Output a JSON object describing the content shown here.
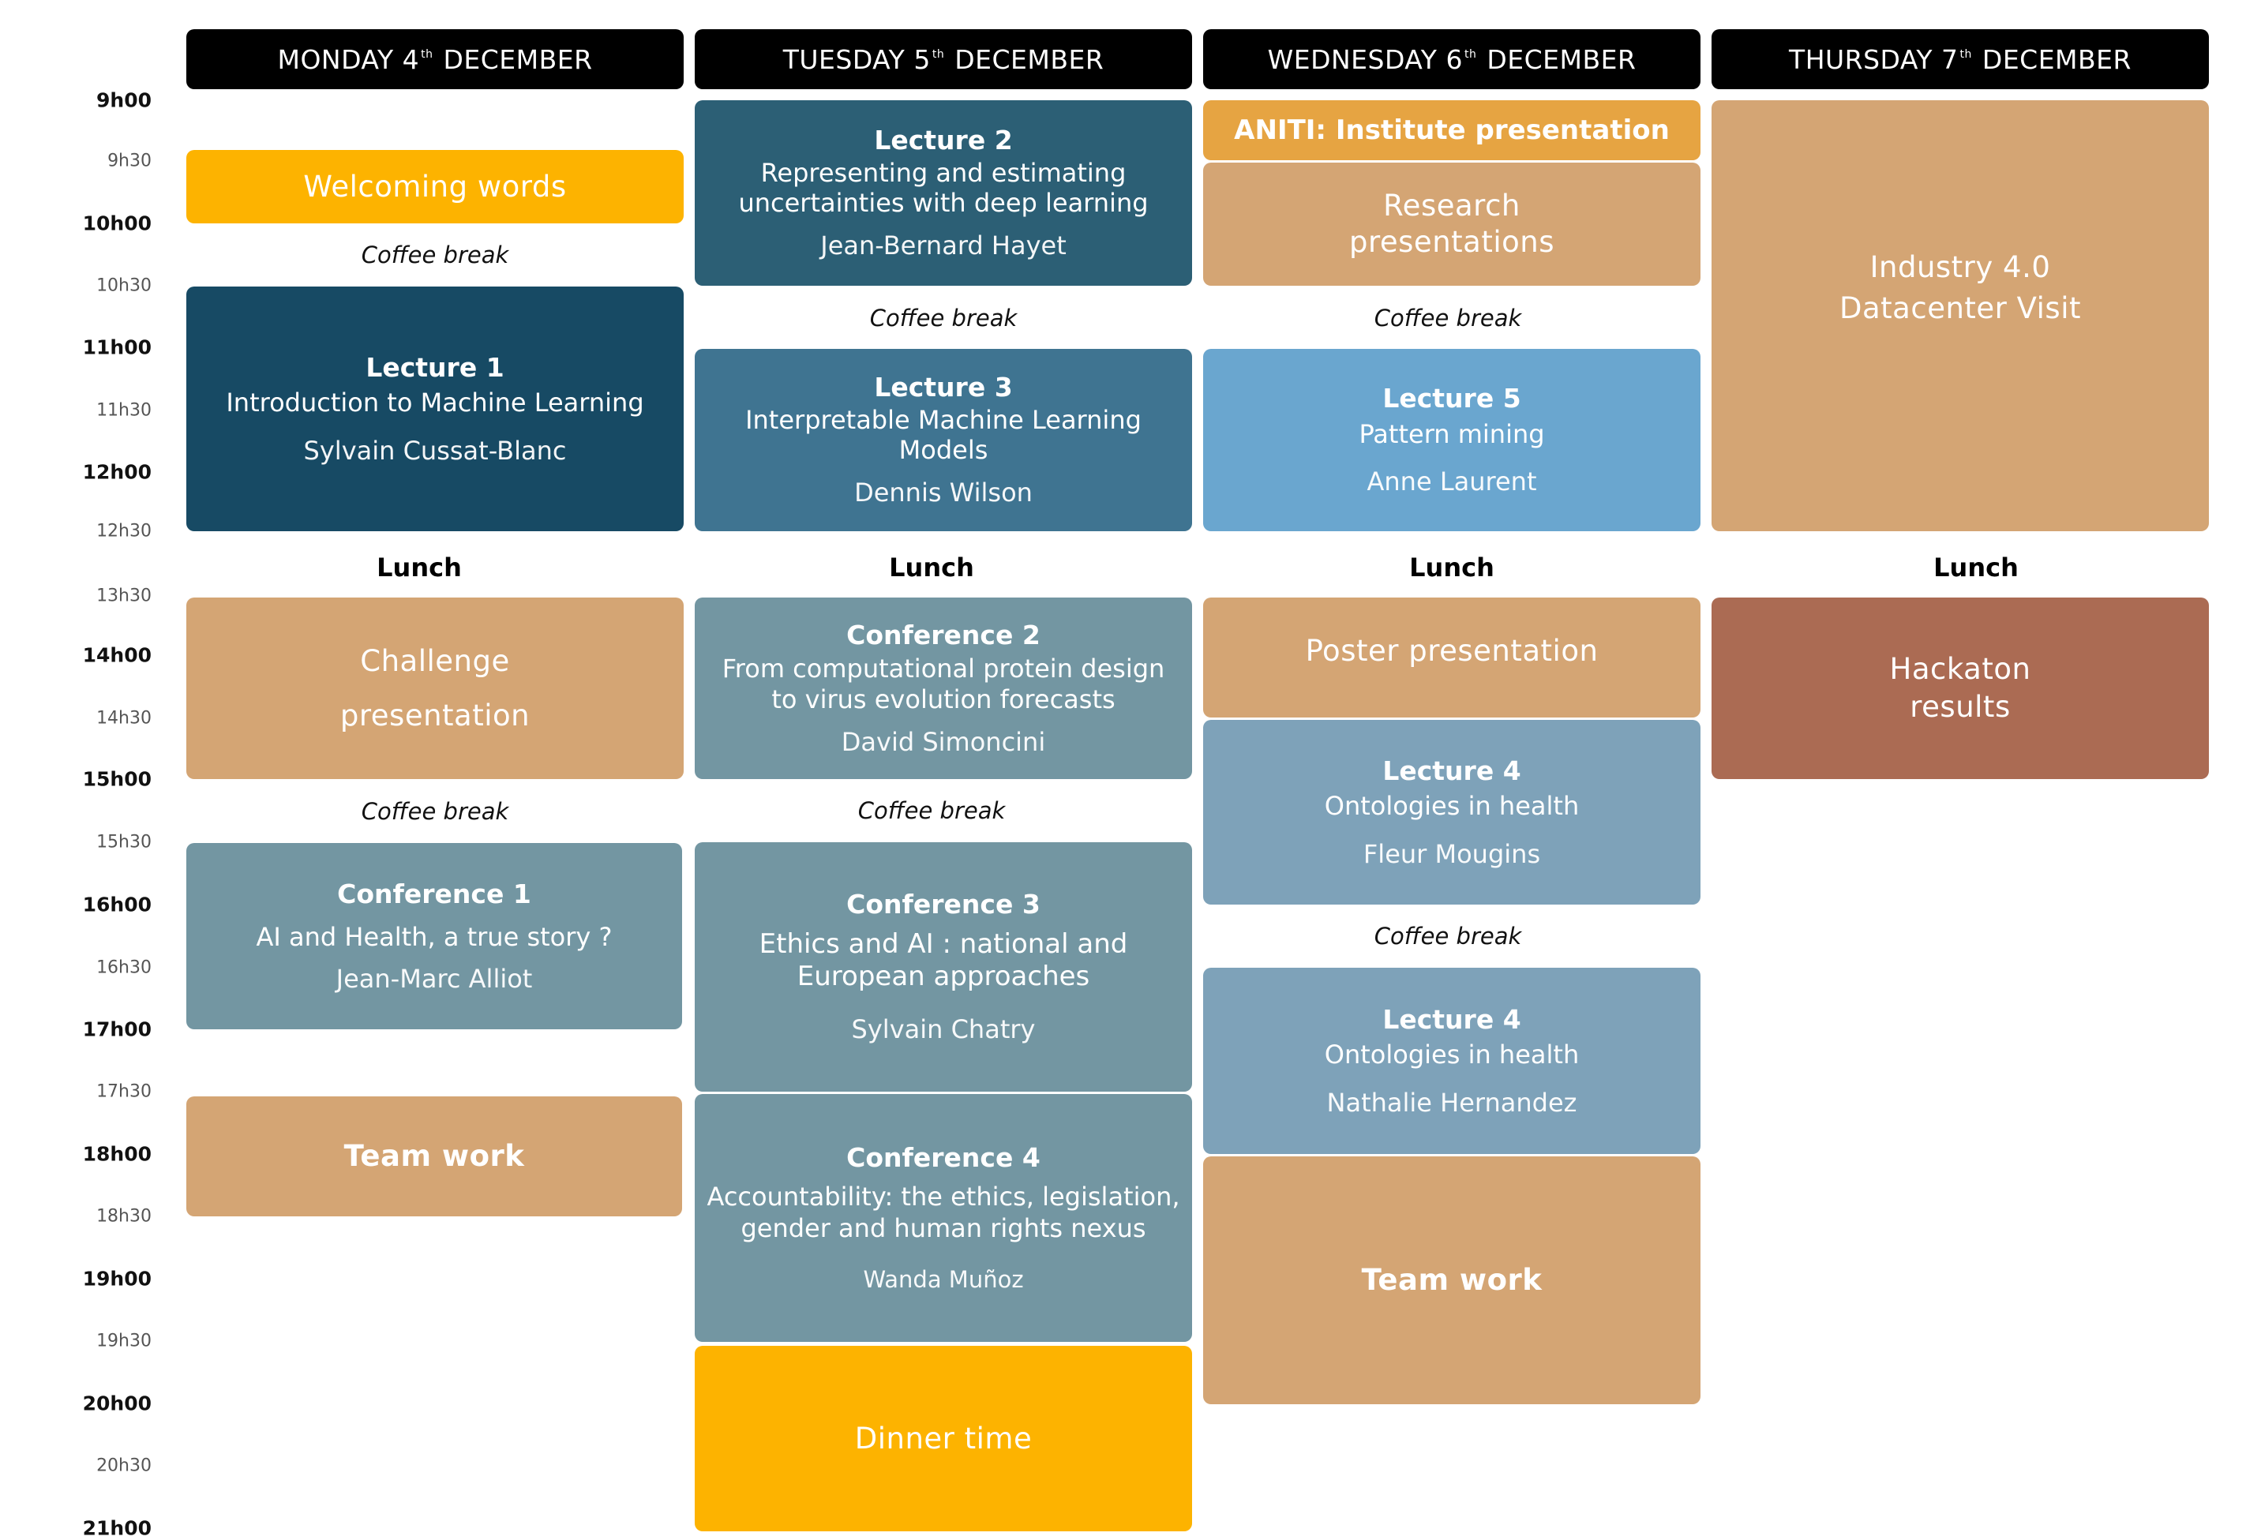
{
  "times": [
    "9h00",
    "9h30",
    "10h00",
    "10h30",
    "11h00",
    "11h30",
    "12h00",
    "12h30",
    "13h30",
    "14h00",
    "14h30",
    "15h00",
    "15h30",
    "16h00",
    "16h30",
    "17h00",
    "17h30",
    "18h00",
    "18h30",
    "19h00",
    "19h30",
    "20h00",
    "20h30",
    "21h00"
  ],
  "days": [
    {
      "prefix": "MONDAY 4",
      "sup": "th",
      "suffix": "DECEMBER"
    },
    {
      "prefix": "TUESDAY 5",
      "sup": "th",
      "suffix": "DECEMBER"
    },
    {
      "prefix": "WEDNESDAY 6",
      "sup": "th",
      "suffix": "DECEMBER"
    },
    {
      "prefix": "THURSDAY 7",
      "sup": "th",
      "suffix": "DECEMBER"
    }
  ],
  "colors": {
    "yellow": "#FDB300",
    "orange": "#E6A442",
    "tan": "#D4A574",
    "navy": "#174A64",
    "teal": "#2C5F75",
    "steel": "#3F7491",
    "sky": "#6AA6CF",
    "greyblue": "#7396A2",
    "slate": "#7EA2B9",
    "rust": "#AB6B53"
  },
  "monday": {
    "welcome": "Welcoming words",
    "coffee1": "Coffee break",
    "lecture1_title": "Lecture 1",
    "lecture1_sub": "Introduction to Machine Learning",
    "lecture1_speaker": "Sylvain Cussat-Blanc",
    "lunch": "Lunch",
    "challenge_line1": "Challenge",
    "challenge_line2": "presentation",
    "coffee2": "Coffee break",
    "conf1_title": "Conference 1",
    "conf1_sub": "AI and Health, a true story ?",
    "conf1_speaker": "Jean-Marc Alliot",
    "teamwork": "Team work"
  },
  "tuesday": {
    "lecture2_title": "Lecture 2",
    "lecture2_sub1": "Representing and estimating",
    "lecture2_sub2": "uncertainties with deep learning",
    "lecture2_speaker": "Jean-Bernard Hayet",
    "coffee1": "Coffee break",
    "lecture3_title": "Lecture 3",
    "lecture3_sub1": "Interpretable Machine Learning",
    "lecture3_sub2": "Models",
    "lecture3_speaker": "Dennis Wilson",
    "lunch": "Lunch",
    "conf2_title": "Conference 2",
    "conf2_sub1": "From computational protein design",
    "conf2_sub2": "to virus evolution forecasts",
    "conf2_speaker": "David Simoncini",
    "coffee2": "Coffee break",
    "conf3_title": "Conference 3",
    "conf3_sub1": "Ethics and AI : national and",
    "conf3_sub2": "European approaches",
    "conf3_speaker": "Sylvain Chatry",
    "conf4_title": "Conference 4",
    "conf4_sub1": "Accountability: the ethics, legislation,",
    "conf4_sub2": "gender and human rights nexus",
    "conf4_speaker": "Wanda Muñoz",
    "dinner": "Dinner time"
  },
  "wednesday": {
    "aniti": "ANITI: Institute presentation",
    "research_line1": "Research",
    "research_line2": "presentations",
    "coffee1": "Coffee break",
    "lecture5_title": "Lecture 5",
    "lecture5_sub": "Pattern mining",
    "lecture5_speaker": "Anne Laurent",
    "lunch": "Lunch",
    "poster": "Poster presentation",
    "lecture4a_title": "Lecture 4",
    "lecture4a_sub": "Ontologies in health",
    "lecture4a_speaker": "Fleur Mougins",
    "coffee2": "Coffee break",
    "lecture4b_title": "Lecture 4",
    "lecture4b_sub": "Ontologies in health",
    "lecture4b_speaker": "Nathalie Hernandez",
    "teamwork": "Team work"
  },
  "thursday": {
    "industry_line1": "Industry 4.0",
    "industry_line2": "Datacenter Visit",
    "lunch": "Lunch",
    "hackaton_line1": "Hackaton",
    "hackaton_line2": "results"
  }
}
